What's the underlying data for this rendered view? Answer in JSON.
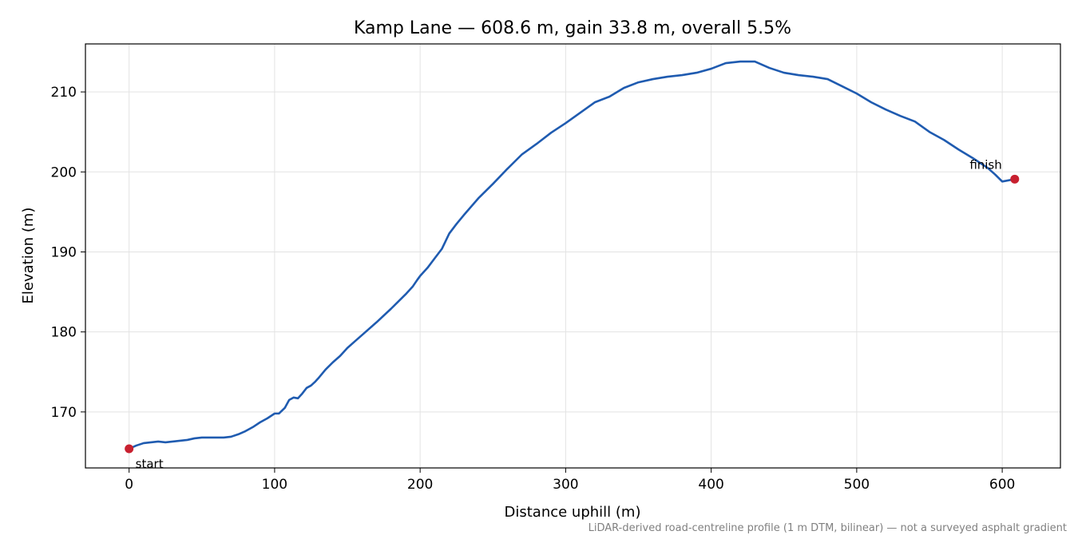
{
  "chart_data": {
    "type": "line",
    "title": "Kamp Lane — 608.6 m, gain 33.8 m, overall 5.5%",
    "xlabel": "Distance uphill (m)",
    "ylabel": "Elevation (m)",
    "xlim": [
      -30,
      640
    ],
    "ylim": [
      163,
      216
    ],
    "xticks": [
      0,
      100,
      200,
      300,
      400,
      500,
      600
    ],
    "yticks": [
      170,
      180,
      190,
      200,
      210
    ],
    "grid": true,
    "line_color": "#1f5bb0",
    "marker_color": "#c8202f",
    "series": [
      {
        "x": [
          0,
          5,
          10,
          15,
          20,
          25,
          30,
          35,
          40,
          45,
          50,
          55,
          60,
          65,
          70,
          75,
          80,
          85,
          90,
          95,
          100,
          103,
          107,
          110,
          113,
          116,
          119,
          122,
          125,
          128,
          130,
          135,
          140,
          145,
          150,
          155,
          160,
          170,
          180,
          190,
          195,
          198,
          200,
          205,
          210,
          215,
          220,
          225,
          230,
          240,
          250,
          260,
          270,
          280,
          290,
          300,
          310,
          320,
          330,
          340,
          350,
          360,
          370,
          380,
          390,
          400,
          410,
          420,
          430,
          440,
          450,
          460,
          470,
          480,
          490,
          500,
          510,
          520,
          530,
          540,
          550,
          560,
          570,
          580,
          590,
          595,
          600,
          603,
          608.6
        ],
        "y": [
          165.4,
          165.8,
          166.1,
          166.2,
          166.3,
          166.2,
          166.3,
          166.4,
          166.5,
          166.7,
          166.8,
          166.8,
          166.8,
          166.8,
          166.9,
          167.2,
          167.6,
          168.1,
          168.7,
          169.2,
          169.8,
          169.8,
          170.5,
          171.5,
          171.8,
          171.7,
          172.3,
          173.0,
          173.3,
          173.8,
          174.2,
          175.3,
          176.2,
          177.0,
          178.0,
          178.8,
          179.6,
          181.2,
          182.9,
          184.7,
          185.7,
          186.5,
          187.0,
          188.0,
          189.2,
          190.4,
          192.3,
          193.5,
          194.6,
          196.7,
          198.5,
          200.4,
          202.2,
          203.5,
          204.9,
          206.1,
          207.4,
          208.7,
          209.4,
          210.5,
          211.2,
          211.6,
          211.9,
          212.1,
          212.4,
          212.9,
          213.6,
          213.8,
          213.8,
          213.0,
          212.4,
          212.1,
          211.9,
          211.6,
          210.7,
          209.8,
          208.7,
          207.8,
          207.0,
          206.3,
          205.0,
          204.0,
          202.8,
          201.7,
          200.5,
          199.7,
          198.8,
          198.9,
          199.1
        ]
      }
    ],
    "annotations": [
      {
        "text": "start",
        "x": 0,
        "y": 165.4
      },
      {
        "text": "finish",
        "x": 608.6,
        "y": 199.1
      }
    ]
  },
  "footnote": "LiDAR-derived road-centreline profile (1 m DTM, bilinear) — not a surveyed asphalt gradient"
}
